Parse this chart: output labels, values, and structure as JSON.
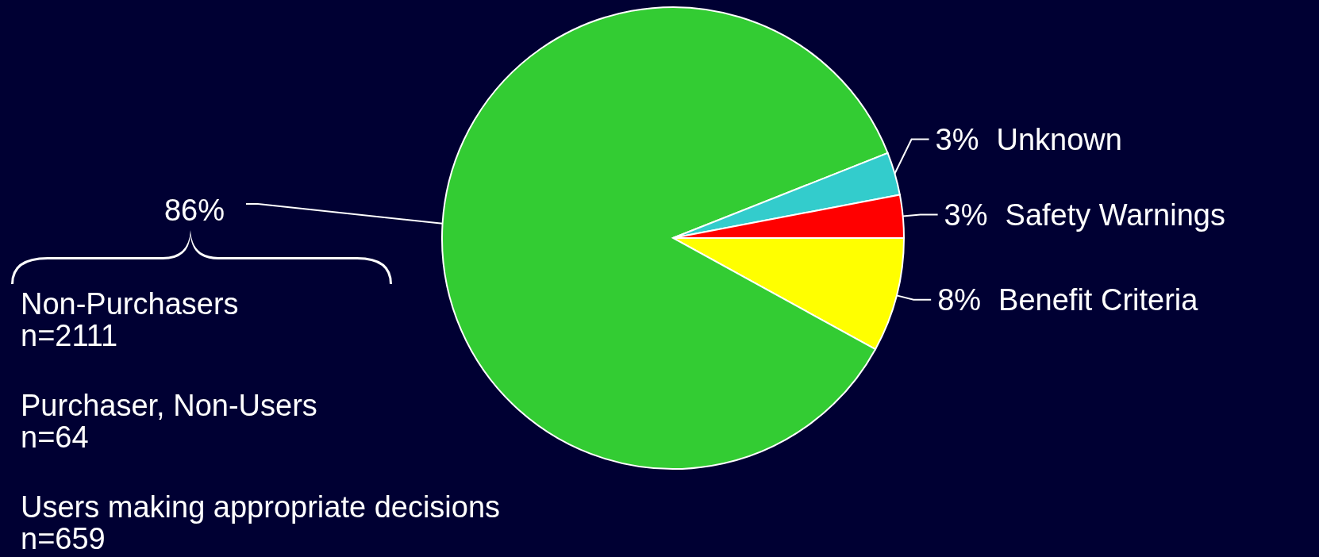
{
  "chart_data": {
    "type": "pie",
    "categories": [
      "Benefit Criteria",
      null,
      "Unknown",
      "Safety Warnings"
    ],
    "values": [
      8,
      86,
      3,
      3
    ],
    "value_labels": [
      "8%",
      "86%",
      "3%",
      "3%"
    ],
    "colors": [
      "#ffff00",
      "#33cc33",
      "#33cccc",
      "#ff0000"
    ],
    "annotations": [
      "Non-Purchasers\nn=2111",
      "Purchaser, Non-Users\nn=64",
      "Users making appropriate decisions\nn=659"
    ]
  }
}
